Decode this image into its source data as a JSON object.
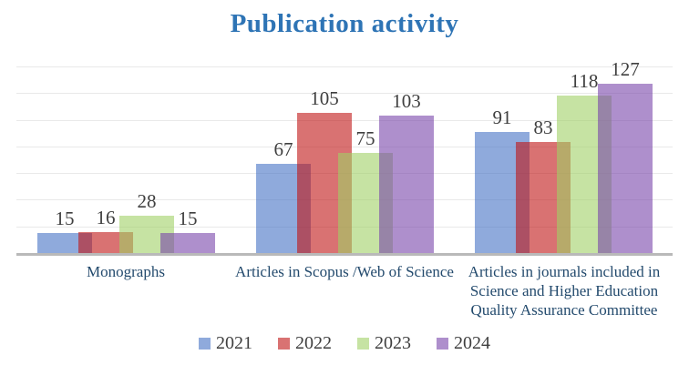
{
  "chart_data": {
    "type": "bar",
    "title": "Publication activity",
    "categories": [
      "Monographs",
      "Articles in Scopus /Web of Science",
      "Articles in journals included in Science and Higher Education Quality Assurance Committee"
    ],
    "series": [
      {
        "name": "2021",
        "color": "#4472C4",
        "values": [
          15,
          67,
          91
        ]
      },
      {
        "name": "2022",
        "color": "#C01414",
        "values": [
          16,
          105,
          83
        ]
      },
      {
        "name": "2023",
        "color": "#A0D066",
        "values": [
          28,
          75,
          118
        ]
      },
      {
        "name": "2024",
        "color": "#7844AA",
        "values": [
          15,
          103,
          127
        ]
      }
    ],
    "ylim": [
      0,
      140
    ],
    "gridline_step": 20,
    "grid": true,
    "legend_position": "bottom",
    "bar_opacity": 0.6,
    "value_labels_shown": true,
    "y_axis_labels_shown": false
  },
  "colors": {
    "title": "#2E74B5",
    "category_label": "#234A6D",
    "value_label": "#3F3F3F",
    "legend_label": "#3F3F3F",
    "gridline": "#E9E9E9",
    "axis_line": "#B9B9B9",
    "background": "#FFFFFF"
  }
}
